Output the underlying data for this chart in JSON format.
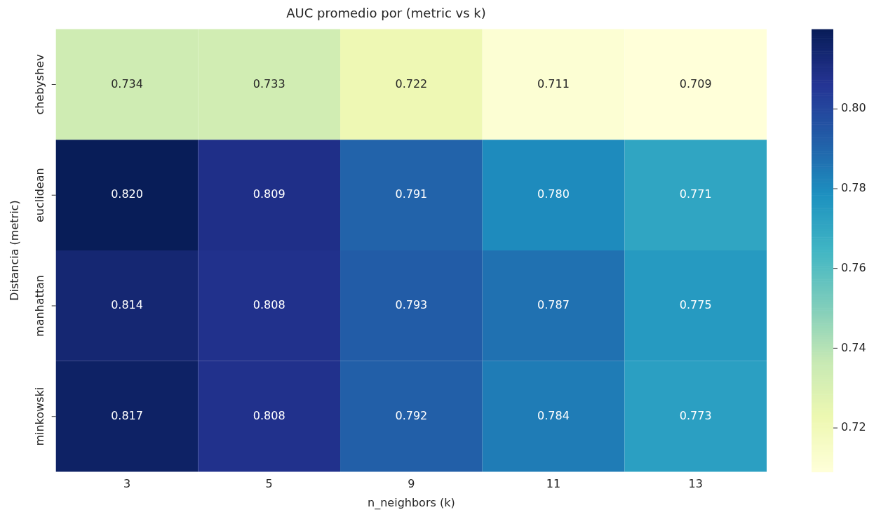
{
  "chart_data": {
    "type": "heatmap",
    "title": "AUC promedio por (metric vs k)",
    "xlabel": "n_neighbors (k)",
    "ylabel": "Distancia (metric)",
    "categories": [
      "3",
      "5",
      "9",
      "11",
      "13"
    ],
    "y_categories": [
      "chebyshev",
      "euclidean",
      "manhattan",
      "minkowski"
    ],
    "cells": [
      [
        0.734,
        0.733,
        0.722,
        0.711,
        0.709
      ],
      [
        0.82,
        0.809,
        0.791,
        0.78,
        0.771
      ],
      [
        0.814,
        0.808,
        0.793,
        0.787,
        0.775
      ],
      [
        0.817,
        0.808,
        0.792,
        0.784,
        0.773
      ]
    ],
    "cell_labels": [
      [
        "0.734",
        "0.733",
        "0.722",
        "0.711",
        "0.709"
      ],
      [
        "0.820",
        "0.809",
        "0.791",
        "0.780",
        "0.771"
      ],
      [
        "0.814",
        "0.808",
        "0.793",
        "0.787",
        "0.775"
      ],
      [
        "0.817",
        "0.808",
        "0.792",
        "0.784",
        "0.773"
      ]
    ],
    "clim": [
      0.709,
      0.82
    ],
    "cticks": [
      0.72,
      0.74,
      0.76,
      0.78,
      {
        "value": 0.8,
        "label": "0.80"
      }
    ]
  }
}
